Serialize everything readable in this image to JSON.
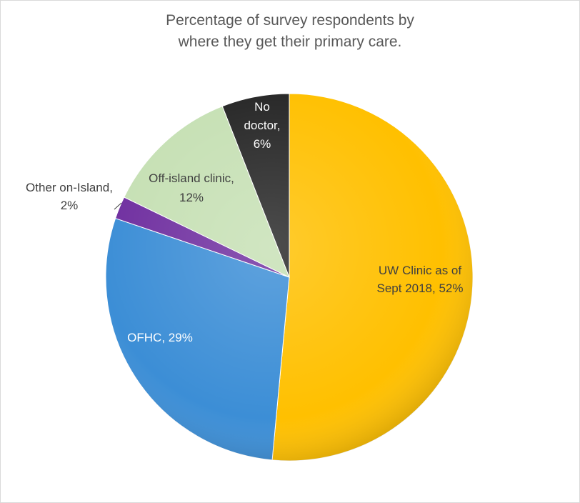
{
  "chart_data": {
    "type": "pie",
    "title": [
      "Percentage of survey respondents by",
      "where they get their primary care."
    ],
    "slices": [
      {
        "name": "UW Clinic as of Sept 2018",
        "value": 52,
        "label": [
          "UW Clinic as of",
          "Sept 2018, 52%"
        ],
        "color": "#FFC000",
        "text_color": "#404040"
      },
      {
        "name": "OFHC",
        "value": 29,
        "label": [
          "OFHC, 29%"
        ],
        "color": "#3C8ED6",
        "text_color": "#ffffff"
      },
      {
        "name": "Other on-Island",
        "value": 2,
        "label": [
          "Other on-Island,",
          "2%"
        ],
        "color": "#7030A0",
        "text_color": "#404040"
      },
      {
        "name": "Off-island clinic",
        "value": 12,
        "label": [
          "Off-island clinic,",
          "12%"
        ],
        "color": "#C6E0B4",
        "text_color": "#404040"
      },
      {
        "name": "No doctor",
        "value": 6,
        "label": [
          "No",
          "doctor,",
          "6%"
        ],
        "color": "#262626",
        "text_color": "#ffffff"
      }
    ]
  }
}
